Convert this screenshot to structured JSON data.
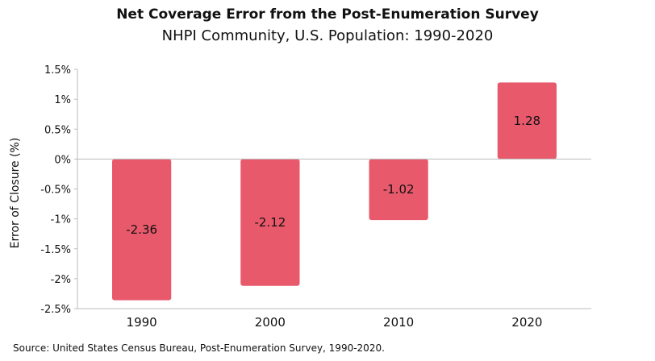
{
  "chart_data": {
    "type": "bar",
    "title": "Net Coverage Error from the Post-Enumeration Survey",
    "subtitle": "NHPI Community, U.S. Population: 1990-2020",
    "ylabel": "Error of Closure (%)",
    "xlabel": "",
    "categories": [
      "1990",
      "2000",
      "2010",
      "2020"
    ],
    "values": [
      -2.36,
      -2.12,
      -1.02,
      1.28
    ],
    "data_labels": [
      "-2.36",
      "-2.12",
      "-1.02",
      "1.28"
    ],
    "ylim": [
      -2.5,
      1.5
    ],
    "yticks": [
      1.5,
      1,
      0.5,
      0,
      -0.5,
      -1,
      -1.5,
      -2,
      -2.5
    ],
    "ytick_labels": [
      "1.5%",
      "1%",
      "0.5%",
      "0%",
      "-0.5%",
      "-1%",
      "-1.5%",
      "-2%",
      "-2.5%"
    ],
    "bar_color": "#e8596c",
    "grid": false
  },
  "source": "Source: United States Census Bureau, Post-Enumeration Survey, 1990-2020."
}
